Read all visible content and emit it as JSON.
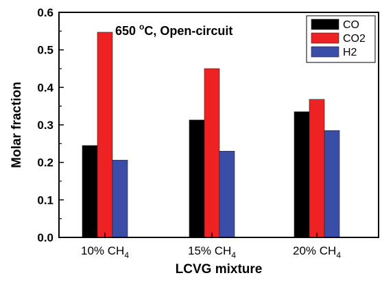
{
  "chart_data": {
    "type": "bar",
    "categories": [
      {
        "base": "10% CH",
        "sub": "4"
      },
      {
        "base": "15% CH",
        "sub": "4"
      },
      {
        "base": "20% CH",
        "sub": "4"
      }
    ],
    "series": [
      {
        "name": "CO",
        "color": "#000000",
        "values": [
          0.245,
          0.313,
          0.335
        ]
      },
      {
        "name": "CO2",
        "color": "#ee2222",
        "values": [
          0.547,
          0.45,
          0.368
        ]
      },
      {
        "name": "H2",
        "color": "#3a4ea8",
        "values": [
          0.206,
          0.23,
          0.285
        ]
      }
    ],
    "annotation": {
      "pre": "650 ",
      "sup": "o",
      "post": "C, Open-circuit"
    },
    "xlabel": "LCVG mixture",
    "ylabel": "Molar fraction",
    "ylim": [
      0,
      0.6
    ],
    "yticks": [
      "0.0",
      "0.1",
      "0.2",
      "0.3",
      "0.4",
      "0.5",
      "0.6"
    ],
    "legend_position": "top-right",
    "grid": false
  }
}
